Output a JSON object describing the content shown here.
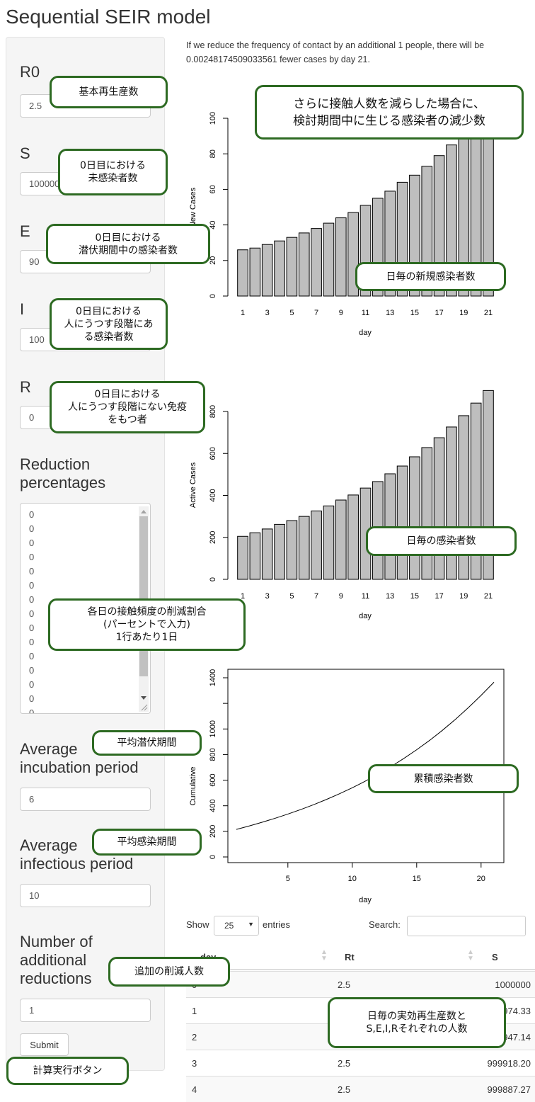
{
  "title": "Sequential SEIR model",
  "sidebar": {
    "r0": {
      "label": "R0",
      "value": "2.5"
    },
    "s": {
      "label": "S",
      "value": "1000000"
    },
    "e": {
      "label": "E",
      "value": "90"
    },
    "i": {
      "label": "I",
      "value": "100"
    },
    "r": {
      "label": "R",
      "value": "0"
    },
    "reduction": {
      "label_1": "Reduction",
      "label_2": "percentages",
      "values": [
        "0",
        "0",
        "0",
        "0",
        "0",
        "0",
        "0",
        "0",
        "0",
        "0",
        "0",
        "0",
        "0",
        "0",
        "0",
        "0"
      ]
    },
    "incubation": {
      "label_1": "Average",
      "label_2": "incubation period",
      "value": "6"
    },
    "infectious": {
      "label_1": "Average",
      "label_2": "infectious period",
      "value": "10"
    },
    "additional": {
      "label_1": "Number of",
      "label_2": "additional",
      "label_3": "reductions",
      "value": "1"
    },
    "submit_label": "Submit"
  },
  "message": "If we reduce the frequency of contact by an additional 1 people, there will be 0.00248174509033561 fewer cases by day 21.",
  "chart_data": [
    {
      "type": "bar",
      "xlabel": "day",
      "ylabel": "New Cases",
      "ylim": [
        0,
        100
      ],
      "yticks": [
        0,
        20,
        40,
        60,
        80,
        100
      ],
      "xticklabels": [
        1,
        3,
        5,
        7,
        9,
        11,
        13,
        15,
        17,
        19,
        21
      ],
      "categories": [
        1,
        2,
        3,
        4,
        5,
        6,
        7,
        8,
        9,
        10,
        11,
        12,
        13,
        14,
        15,
        16,
        17,
        18,
        19,
        20,
        21
      ],
      "values": [
        26,
        27,
        29,
        31,
        33,
        35.5,
        38,
        41,
        44,
        47,
        51,
        55,
        59,
        64,
        68,
        73,
        79,
        85,
        91,
        97,
        103
      ],
      "color": "#bebebe"
    },
    {
      "type": "bar",
      "xlabel": "day",
      "ylabel": "Active Cases",
      "ylim": [
        0,
        900
      ],
      "yticks": [
        0,
        200,
        400,
        600,
        800
      ],
      "xticklabels": [
        1,
        3,
        5,
        7,
        9,
        11,
        13,
        15,
        17,
        19,
        21
      ],
      "categories": [
        1,
        2,
        3,
        4,
        5,
        6,
        7,
        8,
        9,
        10,
        11,
        12,
        13,
        14,
        15,
        16,
        17,
        18,
        19,
        20,
        21
      ],
      "values": [
        205,
        222,
        240,
        262,
        280,
        300,
        326,
        350,
        378,
        402,
        435,
        466,
        503,
        540,
        584,
        628,
        675,
        726,
        780,
        840,
        900
      ],
      "color": "#bebebe"
    },
    {
      "type": "line",
      "xlabel": "day",
      "ylabel": "Cumulative",
      "ylim": [
        0,
        1400
      ],
      "yticks": [
        0,
        200,
        400,
        600,
        800,
        1000,
        1200,
        1400
      ],
      "ytick_labels_shown": [
        0,
        200,
        400,
        600,
        800,
        1000,
        1400
      ],
      "xticks": [
        5,
        10,
        15,
        20
      ],
      "x": [
        1,
        2,
        3,
        4,
        5,
        6,
        7,
        8,
        9,
        10,
        11,
        12,
        13,
        14,
        15,
        16,
        17,
        18,
        19,
        20,
        21
      ],
      "y": [
        215,
        242,
        271,
        302,
        335,
        370.5,
        408.5,
        449.5,
        493.5,
        540.5,
        591.5,
        646.5,
        705.5,
        769.5,
        837.5,
        910.5,
        989.5,
        1074.5,
        1165.5,
        1262.5,
        1365.5
      ]
    }
  ],
  "table": {
    "show_label": "Show",
    "entries_value": "25",
    "entries_label": "entries",
    "search_label": "Search:",
    "search_value": "",
    "columns": [
      "day",
      "Rt",
      "S"
    ],
    "rows": [
      [
        "0",
        "2.5",
        "1000000"
      ],
      [
        "1",
        "2.5",
        "999974.33"
      ],
      [
        "2",
        "2.5",
        "999947.14"
      ],
      [
        "3",
        "2.5",
        "999918.20"
      ],
      [
        "4",
        "2.5",
        "999887.27"
      ]
    ]
  },
  "callouts": {
    "r0": "基本再生産数",
    "s": "0日目における\n未感染者数",
    "e": "0日目における\n潜伏期間中の感染者数",
    "i": "0日目における\n人にうつす段階にあ\nる感染者数",
    "r": "0日目における\n人にうつす段階にない免疫\nをもつ者",
    "message": "さらに接触人数を減らした場合に、\n検討期間中に生じる感染者の減少数",
    "new_cases": "日毎の新規感染者数",
    "active": "日毎の感染者数",
    "reduction": "各日の接触頻度の削減割合\n(パーセントで入力)\n1行あたり1日",
    "incubation": "平均潜伏期間",
    "cumulative": "累積感染者数",
    "infectious": "平均感染期間",
    "additional": "追加の削減人数",
    "table": "日毎の実効再生産数と\nS,E,I,Rそれぞれの人数",
    "submit": "計算実行ボタン"
  }
}
